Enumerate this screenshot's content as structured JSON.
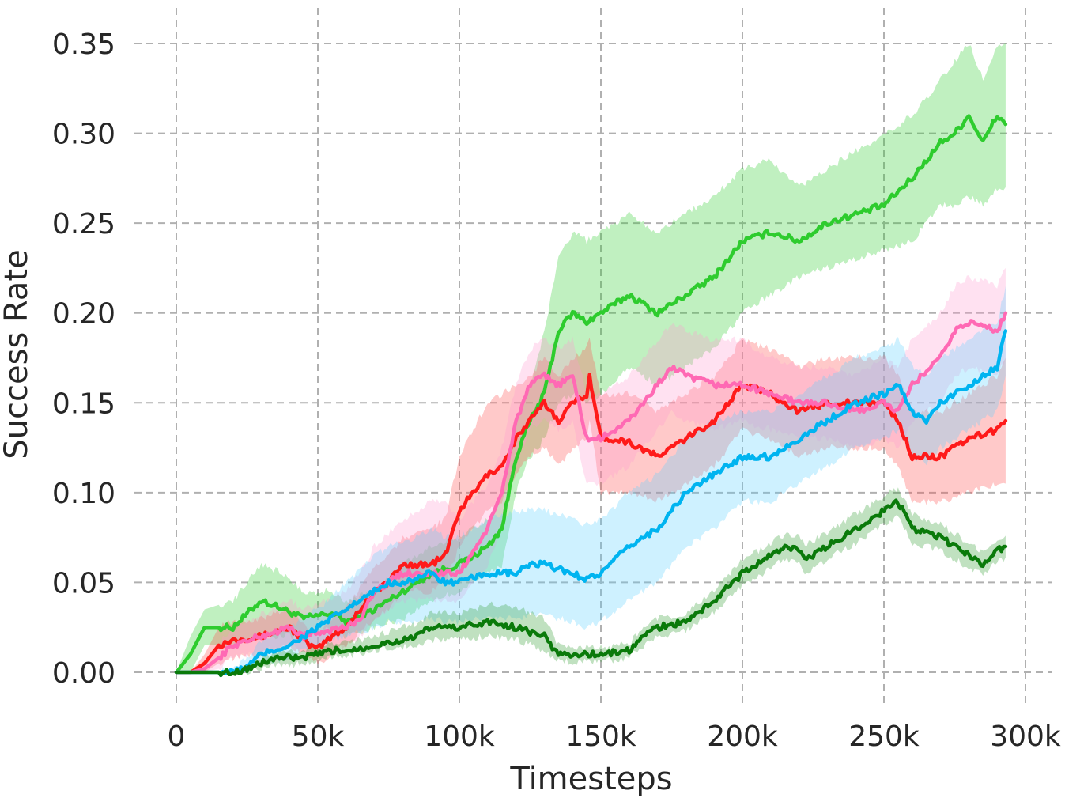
{
  "chart_data": {
    "type": "line",
    "title": "",
    "xlabel": "Timesteps",
    "ylabel": "Success Rate",
    "xlim": [
      -3000,
      300000
    ],
    "ylim": [
      -0.01,
      0.36
    ],
    "x_ticks": [
      0,
      50000,
      100000,
      150000,
      200000,
      250000,
      300000
    ],
    "x_tick_labels": [
      "0",
      "50k",
      "100k",
      "150k",
      "200k",
      "250k",
      "300k"
    ],
    "y_ticks": [
      0.0,
      0.05,
      0.1,
      0.15,
      0.2,
      0.25,
      0.3,
      0.35
    ],
    "y_tick_labels": [
      "0.00",
      "0.05",
      "0.10",
      "0.15",
      "0.20",
      "0.25",
      "0.30",
      "0.35"
    ],
    "grid": true,
    "legend": "none",
    "series": [
      {
        "color": "#2ecc2e",
        "band_color": "#2ecc2e",
        "x": [
          0,
          5000,
          10000,
          20000,
          30000,
          38000,
          45000,
          55000,
          60000,
          70000,
          80000,
          90000,
          100000,
          110000,
          115000,
          120000,
          125000,
          130000,
          135000,
          140000,
          145000,
          150000,
          160000,
          170000,
          180000,
          190000,
          200000,
          210000,
          220000,
          230000,
          240000,
          250000,
          260000,
          270000,
          275000,
          280000,
          285000,
          290000,
          293000
        ],
        "y": [
          0.0,
          0.01,
          0.025,
          0.025,
          0.04,
          0.035,
          0.03,
          0.033,
          0.028,
          0.035,
          0.045,
          0.055,
          0.06,
          0.07,
          0.08,
          0.12,
          0.14,
          0.155,
          0.19,
          0.2,
          0.195,
          0.2,
          0.21,
          0.2,
          0.21,
          0.22,
          0.24,
          0.245,
          0.24,
          0.25,
          0.255,
          0.26,
          0.275,
          0.295,
          0.3,
          0.31,
          0.295,
          0.31,
          0.305
        ],
        "lower": [
          0.0,
          0.0,
          0.015,
          0.015,
          0.02,
          0.02,
          0.02,
          0.025,
          0.02,
          0.025,
          0.03,
          0.04,
          0.045,
          0.055,
          0.06,
          0.1,
          0.12,
          0.13,
          0.15,
          0.155,
          0.15,
          0.155,
          0.17,
          0.16,
          0.17,
          0.18,
          0.2,
          0.21,
          0.22,
          0.225,
          0.23,
          0.235,
          0.24,
          0.26,
          0.26,
          0.265,
          0.26,
          0.27,
          0.27
        ],
        "upper": [
          0.0,
          0.02,
          0.035,
          0.04,
          0.06,
          0.055,
          0.045,
          0.045,
          0.04,
          0.045,
          0.06,
          0.07,
          0.075,
          0.085,
          0.1,
          0.14,
          0.16,
          0.19,
          0.23,
          0.245,
          0.24,
          0.245,
          0.255,
          0.245,
          0.255,
          0.265,
          0.28,
          0.285,
          0.27,
          0.28,
          0.29,
          0.3,
          0.31,
          0.33,
          0.34,
          0.35,
          0.33,
          0.35,
          0.35
        ]
      },
      {
        "color": "#ff1a1a",
        "band_color": "#ff4d4d",
        "x": [
          0,
          5000,
          10000,
          15000,
          20000,
          30000,
          40000,
          47000,
          50000,
          55000,
          60000,
          70000,
          75000,
          80000,
          90000,
          95000,
          100000,
          105000,
          110000,
          115000,
          120000,
          125000,
          130000,
          135000,
          140000,
          145000,
          146000,
          150000,
          155000,
          160000,
          170000,
          180000,
          190000,
          200000,
          210000,
          220000,
          230000,
          240000,
          250000,
          255000,
          260000,
          265000,
          270000,
          280000,
          290000,
          293000
        ],
        "y": [
          0.0,
          0.0,
          0.005,
          0.015,
          0.018,
          0.02,
          0.025,
          0.015,
          0.013,
          0.02,
          0.025,
          0.045,
          0.05,
          0.06,
          0.06,
          0.065,
          0.09,
          0.1,
          0.11,
          0.115,
          0.13,
          0.14,
          0.15,
          0.14,
          0.15,
          0.155,
          0.165,
          0.13,
          0.13,
          0.128,
          0.12,
          0.13,
          0.14,
          0.16,
          0.155,
          0.145,
          0.15,
          0.15,
          0.15,
          0.14,
          0.12,
          0.12,
          0.12,
          0.13,
          0.135,
          0.14
        ],
        "lower": [
          0.0,
          0.0,
          0.0,
          0.005,
          0.008,
          0.01,
          0.015,
          0.008,
          0.005,
          0.01,
          0.015,
          0.03,
          0.035,
          0.045,
          0.045,
          0.05,
          0.07,
          0.08,
          0.09,
          0.095,
          0.11,
          0.12,
          0.125,
          0.115,
          0.125,
          0.13,
          0.14,
          0.1,
          0.1,
          0.1,
          0.095,
          0.105,
          0.115,
          0.135,
          0.13,
          0.12,
          0.125,
          0.125,
          0.125,
          0.115,
          0.095,
          0.095,
          0.095,
          0.1,
          0.105,
          0.105
        ],
        "upper": [
          0.0,
          0.0,
          0.01,
          0.025,
          0.028,
          0.03,
          0.035,
          0.025,
          0.022,
          0.03,
          0.035,
          0.06,
          0.065,
          0.075,
          0.08,
          0.085,
          0.12,
          0.135,
          0.15,
          0.155,
          0.16,
          0.165,
          0.175,
          0.165,
          0.175,
          0.18,
          0.185,
          0.155,
          0.155,
          0.155,
          0.145,
          0.155,
          0.165,
          0.185,
          0.18,
          0.17,
          0.175,
          0.175,
          0.175,
          0.165,
          0.145,
          0.145,
          0.145,
          0.155,
          0.165,
          0.175
        ]
      },
      {
        "color": "#ff69b4",
        "band_color": "#ff9ccf",
        "x": [
          0,
          5000,
          10000,
          15000,
          20000,
          30000,
          40000,
          45000,
          50000,
          60000,
          65000,
          70000,
          80000,
          90000,
          95000,
          100000,
          110000,
          115000,
          120000,
          125000,
          130000,
          135000,
          140000,
          145000,
          150000,
          160000,
          170000,
          175000,
          180000,
          190000,
          200000,
          210000,
          220000,
          230000,
          240000,
          250000,
          255000,
          260000,
          270000,
          275000,
          280000,
          290000,
          293000
        ],
        "y": [
          0.0,
          0.0,
          0.002,
          0.008,
          0.015,
          0.02,
          0.025,
          0.02,
          0.022,
          0.025,
          0.03,
          0.045,
          0.055,
          0.055,
          0.055,
          0.055,
          0.08,
          0.1,
          0.14,
          0.16,
          0.165,
          0.16,
          0.165,
          0.13,
          0.13,
          0.14,
          0.16,
          0.17,
          0.165,
          0.16,
          0.16,
          0.155,
          0.15,
          0.15,
          0.145,
          0.15,
          0.145,
          0.16,
          0.175,
          0.19,
          0.195,
          0.19,
          0.2
        ],
        "lower": [
          0.0,
          0.0,
          0.0,
          0.002,
          0.008,
          0.012,
          0.015,
          0.012,
          0.014,
          0.015,
          0.02,
          0.03,
          0.04,
          0.04,
          0.04,
          0.04,
          0.06,
          0.08,
          0.115,
          0.135,
          0.14,
          0.135,
          0.14,
          0.105,
          0.105,
          0.115,
          0.135,
          0.145,
          0.14,
          0.135,
          0.14,
          0.135,
          0.13,
          0.13,
          0.125,
          0.13,
          0.125,
          0.14,
          0.15,
          0.165,
          0.17,
          0.165,
          0.175
        ],
        "upper": [
          0.0,
          0.0,
          0.006,
          0.016,
          0.025,
          0.032,
          0.04,
          0.035,
          0.038,
          0.045,
          0.055,
          0.07,
          0.085,
          0.095,
          0.095,
          0.085,
          0.105,
          0.125,
          0.16,
          0.18,
          0.185,
          0.18,
          0.185,
          0.155,
          0.155,
          0.165,
          0.185,
          0.195,
          0.19,
          0.185,
          0.185,
          0.175,
          0.17,
          0.17,
          0.165,
          0.175,
          0.17,
          0.185,
          0.2,
          0.215,
          0.22,
          0.215,
          0.225
        ]
      },
      {
        "color": "#00b4f0",
        "band_color": "#5ccfff",
        "x": [
          0,
          10000,
          20000,
          25000,
          30000,
          40000,
          45000,
          50000,
          55000,
          60000,
          70000,
          75000,
          80000,
          90000,
          95000,
          100000,
          110000,
          120000,
          125000,
          130000,
          140000,
          145000,
          150000,
          160000,
          170000,
          180000,
          190000,
          200000,
          210000,
          220000,
          230000,
          240000,
          250000,
          255000,
          260000,
          265000,
          270000,
          280000,
          290000,
          293000
        ],
        "y": [
          0.0,
          0.0,
          0.0,
          0.003,
          0.01,
          0.015,
          0.02,
          0.025,
          0.03,
          0.035,
          0.045,
          0.05,
          0.05,
          0.055,
          0.05,
          0.05,
          0.055,
          0.055,
          0.06,
          0.06,
          0.055,
          0.052,
          0.055,
          0.07,
          0.08,
          0.1,
          0.11,
          0.12,
          0.12,
          0.13,
          0.14,
          0.15,
          0.155,
          0.16,
          0.145,
          0.14,
          0.15,
          0.16,
          0.17,
          0.19
        ],
        "lower": [
          0.0,
          0.0,
          0.0,
          0.0,
          0.005,
          0.008,
          0.012,
          0.015,
          0.018,
          0.02,
          0.025,
          0.028,
          0.028,
          0.03,
          0.028,
          0.028,
          0.03,
          0.03,
          0.032,
          0.032,
          0.028,
          0.025,
          0.028,
          0.04,
          0.05,
          0.07,
          0.08,
          0.095,
          0.095,
          0.105,
          0.115,
          0.125,
          0.13,
          0.135,
          0.12,
          0.115,
          0.125,
          0.135,
          0.145,
          0.165
        ],
        "upper": [
          0.0,
          0.0,
          0.002,
          0.008,
          0.018,
          0.025,
          0.03,
          0.035,
          0.042,
          0.05,
          0.065,
          0.07,
          0.072,
          0.08,
          0.075,
          0.075,
          0.085,
          0.09,
          0.09,
          0.09,
          0.085,
          0.082,
          0.085,
          0.1,
          0.11,
          0.13,
          0.14,
          0.145,
          0.145,
          0.155,
          0.165,
          0.175,
          0.18,
          0.185,
          0.17,
          0.165,
          0.175,
          0.185,
          0.195,
          0.215
        ]
      },
      {
        "color": "#0a7a0a",
        "band_color": "#2e9b2e",
        "x": [
          0,
          10000,
          20000,
          25000,
          30000,
          35000,
          40000,
          45000,
          50000,
          55000,
          60000,
          70000,
          80000,
          85000,
          90000,
          95000,
          100000,
          110000,
          120000,
          130000,
          135000,
          140000,
          150000,
          160000,
          165000,
          170000,
          180000,
          190000,
          200000,
          210000,
          215000,
          220000,
          222000,
          230000,
          240000,
          250000,
          255000,
          260000,
          270000,
          280000,
          285000,
          290000,
          293000
        ],
        "y": [
          0.0,
          0.0,
          0.0,
          0.002,
          0.005,
          0.008,
          0.008,
          0.008,
          0.01,
          0.012,
          0.012,
          0.015,
          0.018,
          0.02,
          0.025,
          0.025,
          0.025,
          0.028,
          0.025,
          0.02,
          0.01,
          0.01,
          0.01,
          0.012,
          0.02,
          0.025,
          0.028,
          0.04,
          0.055,
          0.065,
          0.07,
          0.068,
          0.062,
          0.07,
          0.08,
          0.09,
          0.095,
          0.08,
          0.075,
          0.065,
          0.06,
          0.068,
          0.07
        ],
        "lower": [
          0.0,
          0.0,
          0.0,
          0.0,
          0.002,
          0.004,
          0.004,
          0.005,
          0.007,
          0.009,
          0.009,
          0.012,
          0.014,
          0.015,
          0.018,
          0.018,
          0.018,
          0.02,
          0.018,
          0.012,
          0.006,
          0.006,
          0.006,
          0.008,
          0.015,
          0.02,
          0.023,
          0.034,
          0.048,
          0.058,
          0.063,
          0.06,
          0.055,
          0.063,
          0.072,
          0.082,
          0.087,
          0.072,
          0.068,
          0.058,
          0.054,
          0.062,
          0.064
        ],
        "upper": [
          0.0,
          0.0,
          0.0,
          0.004,
          0.008,
          0.012,
          0.012,
          0.012,
          0.014,
          0.016,
          0.016,
          0.02,
          0.025,
          0.027,
          0.033,
          0.033,
          0.033,
          0.038,
          0.036,
          0.03,
          0.015,
          0.014,
          0.014,
          0.016,
          0.025,
          0.03,
          0.033,
          0.046,
          0.062,
          0.072,
          0.077,
          0.076,
          0.07,
          0.078,
          0.088,
          0.098,
          0.103,
          0.088,
          0.082,
          0.072,
          0.066,
          0.074,
          0.076
        ]
      }
    ]
  }
}
